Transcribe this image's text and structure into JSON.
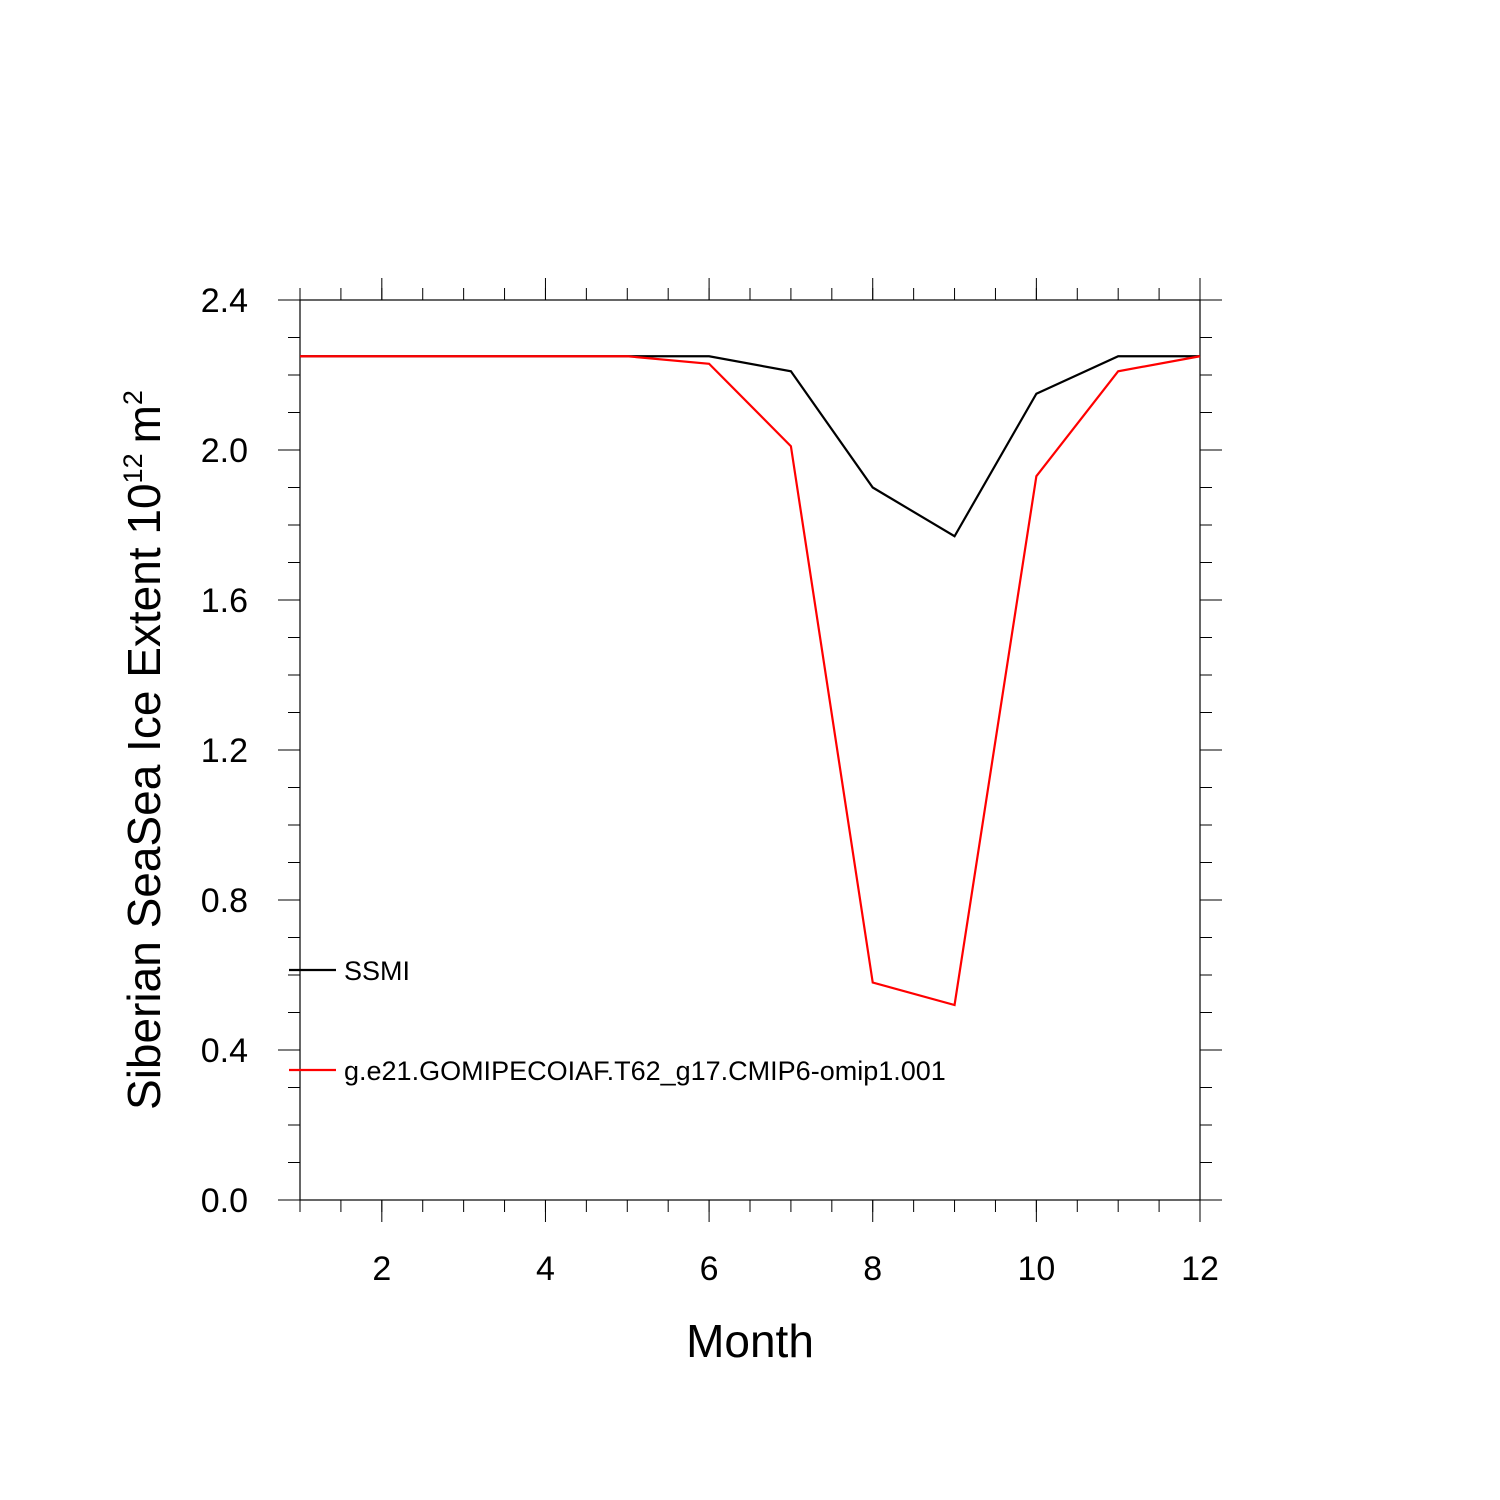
{
  "chart_data": {
    "type": "line",
    "xlabel": "Month",
    "ylabel": {
      "text": "Siberian SeaSea Ice Extent 10",
      "exponent": "12",
      "unit": "m",
      "unit_exponent": "2"
    },
    "xlim": [
      1,
      12
    ],
    "ylim": [
      0.0,
      2.4
    ],
    "x_ticks": [
      2,
      4,
      6,
      8,
      10,
      12
    ],
    "x_tick_labels": [
      "2",
      "4",
      "6",
      "8",
      "10",
      "12"
    ],
    "y_ticks": [
      0.0,
      0.4,
      0.8,
      1.2,
      1.6,
      2.0,
      2.4
    ],
    "y_tick_labels": [
      "0.0",
      "0.4",
      "0.8",
      "1.2",
      "1.6",
      "2.0",
      "2.4"
    ],
    "grid": false,
    "legend_position": "lower-left",
    "x": [
      1,
      2,
      3,
      4,
      5,
      6,
      7,
      8,
      9,
      10,
      11,
      12
    ],
    "series": [
      {
        "name": "SSMI",
        "color": "#000000",
        "values": [
          2.25,
          2.25,
          2.25,
          2.25,
          2.25,
          2.25,
          2.21,
          1.9,
          1.77,
          2.15,
          2.25,
          2.25
        ]
      },
      {
        "name": "g.e21.GOMIPECOIAF.T62_g17.CMIP6-omip1.001",
        "color": "#ff0000",
        "values": [
          2.25,
          2.25,
          2.25,
          2.25,
          2.25,
          2.23,
          2.01,
          0.58,
          0.52,
          1.93,
          2.21,
          2.25
        ]
      }
    ]
  }
}
